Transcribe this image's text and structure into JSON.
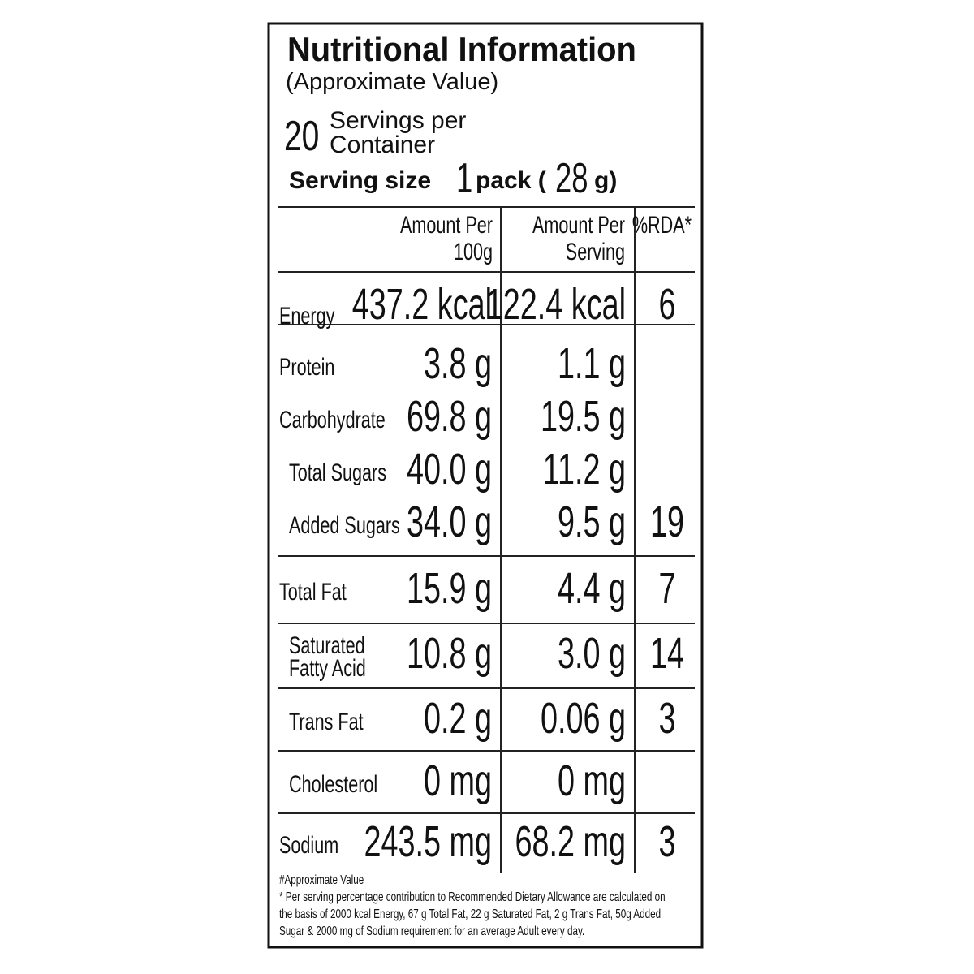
{
  "header": {
    "title": "Nutritional Information",
    "subtitle": "(Approximate Value)",
    "servings": {
      "count": "20",
      "text": [
        "Servings per",
        "Container"
      ]
    },
    "serving_size": [
      "Serving size",
      "1",
      "pack (",
      "28",
      "g)"
    ]
  },
  "table": {
    "columns": [
      [
        "Amount Per",
        "100g"
      ],
      [
        "Amount Per",
        "Serving"
      ],
      [
        "%RDA*"
      ]
    ],
    "rows": [
      {
        "name": [
          "Energy"
        ],
        "per_100g": "437.2 kcal",
        "per_serving": "122.4 kcal",
        "rda": "6"
      },
      {
        "name": [
          "Protein"
        ],
        "per_100g": "3.8 g",
        "per_serving": "1.1 g"
      },
      {
        "name": [
          "Carbohydrate"
        ],
        "per_100g": "69.8 g",
        "per_serving": "19.5 g"
      },
      {
        "name": [
          "Total Sugars"
        ],
        "per_100g": "40.0 g",
        "per_serving": "11.2 g"
      },
      {
        "name": [
          "Added Sugars"
        ],
        "per_100g": "34.0 g",
        "per_serving": "9.5 g",
        "rda": "19"
      },
      {
        "name": [
          "Total Fat"
        ],
        "per_100g": "15.9 g",
        "per_serving": "4.4 g",
        "rda": "7"
      },
      {
        "name": [
          "Saturated",
          "Fatty Acid"
        ],
        "per_100g": "10.8 g",
        "per_serving": "3.0 g",
        "rda": "14"
      },
      {
        "name": [
          "Trans Fat"
        ],
        "per_100g": "0.2 g",
        "per_serving": "0.06 g",
        "rda": "3"
      },
      {
        "name": [
          "Cholesterol"
        ],
        "per_100g": "0 mg",
        "per_serving": "0 mg"
      },
      {
        "name": [
          "Sodium"
        ],
        "per_100g": "243.5 mg",
        "per_serving": "68.2 mg",
        "rda": "3"
      }
    ]
  },
  "footnote": [
    "#Approximate Value",
    "* Per serving percentage contribution to Recommended Dietary Allowance are calculated on",
    "the basis of 2000 kcal Energy, 67 g Total Fat, 22 g Saturated Fat, 2 g Trans Fat, 50g Added",
    "Sugar & 2000 mg of Sodium requirement for an average  Adult  every day."
  ]
}
